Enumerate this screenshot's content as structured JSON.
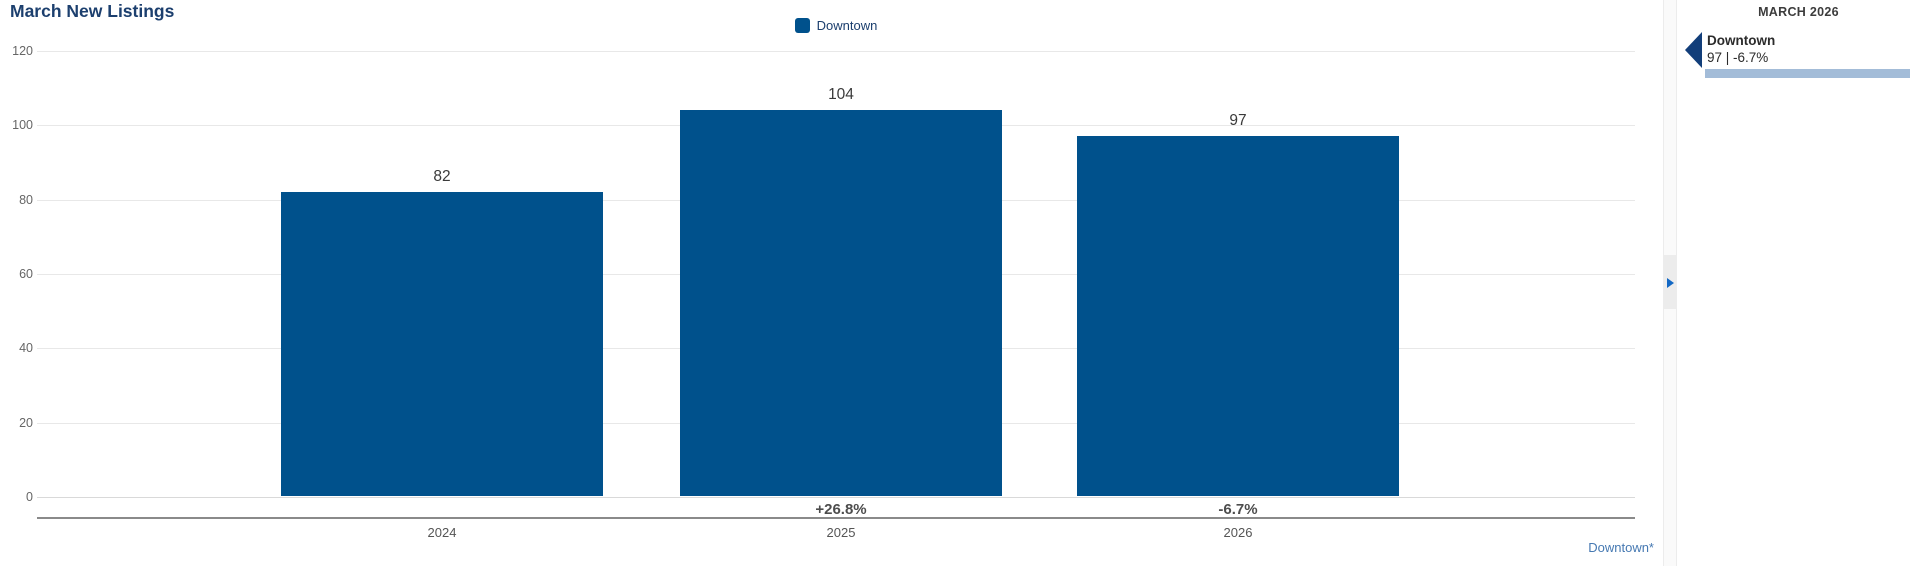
{
  "title": "March New Listings",
  "legend": {
    "label": "Downtown",
    "swatch_color": "#00518c"
  },
  "chart_data": {
    "type": "bar",
    "title": "March New Listings",
    "categories": [
      "2024",
      "2025",
      "2026"
    ],
    "series": [
      {
        "name": "Downtown",
        "values": [
          82,
          104,
          97
        ]
      }
    ],
    "value_labels": [
      "82",
      "104",
      "97"
    ],
    "pct_change_labels": [
      "",
      "+26.8%",
      "-6.7%"
    ],
    "y_ticks": [
      0,
      20,
      40,
      60,
      80,
      100,
      120
    ],
    "ylim": [
      0,
      120
    ],
    "bar_color": "#00518c",
    "grid": true,
    "legend_position": "top-center"
  },
  "footnote_link": "Downtown*",
  "divider": {
    "expand_arrow": "right-triangle"
  },
  "panel": {
    "header": "MARCH 2026",
    "entries": [
      {
        "name": "Downtown",
        "value_line": "97 | -6.7%",
        "bar_color": "#a3bcd8",
        "arrow_color": "#123e7a"
      }
    ]
  },
  "colors": {
    "bar": "#00518c",
    "title_navy": "#1c3f6e",
    "link_blue": "#4679b2",
    "panel_arrow_navy": "#123e7a",
    "panel_bar_light_blue": "#a3bcd8",
    "expander_blue": "#1368c4"
  }
}
